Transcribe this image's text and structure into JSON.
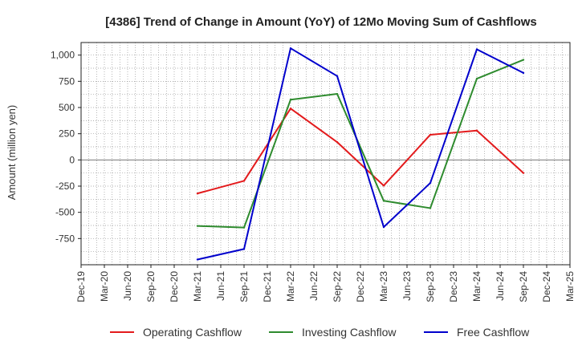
{
  "chart_data": {
    "type": "line",
    "title": "[4386]  Trend of Change in Amount (YoY) of 12Mo Moving Sum of Cashflows",
    "xlabel": "",
    "ylabel": "Amount (million yen)",
    "ylim": [
      -1000,
      1120
    ],
    "yticks": [
      1000,
      750,
      500,
      250,
      0,
      -250,
      -500,
      -750
    ],
    "ytick_labels": [
      "1,000",
      "750",
      "500",
      "250",
      "0",
      "-250",
      "-500",
      "-750"
    ],
    "categories": [
      "Dec-19",
      "Mar-20",
      "Jun-20",
      "Sep-20",
      "Dec-20",
      "Mar-21",
      "Jun-21",
      "Sep-21",
      "Dec-21",
      "Mar-22",
      "Jun-22",
      "Sep-22",
      "Dec-22",
      "Mar-23",
      "Jun-23",
      "Sep-23",
      "Dec-23",
      "Mar-24",
      "Jun-24",
      "Sep-24",
      "Dec-24",
      "Mar-25"
    ],
    "grid": true,
    "legend_position": "bottom",
    "series": [
      {
        "name": "Operating Cashflow",
        "color": "#e31a1c",
        "values": [
          null,
          null,
          null,
          null,
          null,
          -320,
          null,
          -200,
          null,
          490,
          null,
          170,
          null,
          -245,
          null,
          240,
          null,
          280,
          null,
          -125,
          null,
          null
        ]
      },
      {
        "name": "Investing Cashflow",
        "color": "#2e8b2e",
        "values": [
          null,
          null,
          null,
          null,
          null,
          -630,
          null,
          -645,
          null,
          575,
          null,
          630,
          null,
          -390,
          null,
          -460,
          null,
          775,
          null,
          955,
          null,
          null
        ]
      },
      {
        "name": "Free Cashflow",
        "color": "#0000cc",
        "values": [
          null,
          null,
          null,
          null,
          null,
          -950,
          null,
          -850,
          null,
          1065,
          null,
          800,
          null,
          -640,
          null,
          -220,
          null,
          1055,
          null,
          830,
          null,
          null
        ]
      }
    ]
  }
}
